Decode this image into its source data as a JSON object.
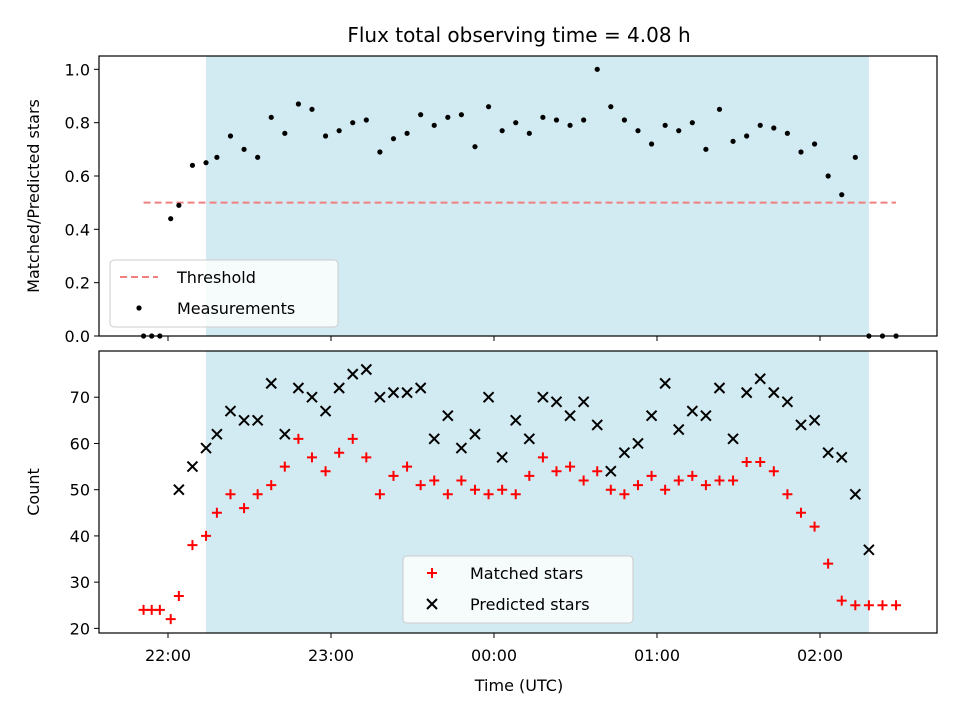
{
  "chart_data": {
    "title": "Flux total observing time = 4.08 h",
    "xlabel": "Time (UTC)",
    "x_ticks": [
      "22:00",
      "23:00",
      "00:00",
      "01:00",
      "02:00"
    ],
    "observing_window": {
      "start": "22:14",
      "end": "02:18",
      "color": "#add8e6"
    },
    "panels": [
      {
        "type": "scatter",
        "ylabel": "Matched/Predicted stars",
        "ylim": [
          0,
          1.05
        ],
        "yticks": [
          "0.0",
          "0.2",
          "0.4",
          "0.6",
          "0.8",
          "1.0"
        ],
        "threshold": {
          "name": "Threshold",
          "value": 0.5,
          "x_range": [
            "21:51",
            "02:28"
          ],
          "color": "#f08080"
        },
        "series": [
          {
            "name": "Measurements",
            "color": "#000000",
            "x": [
              "21:51",
              "21:54",
              "21:57",
              "22:01",
              "22:04",
              "22:09",
              "22:14",
              "22:18",
              "22:23",
              "22:28",
              "22:33",
              "22:38",
              "22:43",
              "22:48",
              "22:53",
              "22:58",
              "23:03",
              "23:08",
              "23:13",
              "23:18",
              "23:23",
              "23:28",
              "23:33",
              "23:38",
              "23:43",
              "23:48",
              "23:53",
              "23:58",
              "00:03",
              "00:08",
              "00:13",
              "00:18",
              "00:23",
              "00:28",
              "00:33",
              "00:38",
              "00:43",
              "00:48",
              "00:53",
              "00:58",
              "01:03",
              "01:08",
              "01:13",
              "01:18",
              "01:23",
              "01:28",
              "01:33",
              "01:38",
              "01:43",
              "01:48",
              "01:53",
              "01:58",
              "02:03",
              "02:08",
              "02:13",
              "02:18",
              "02:23",
              "02:28"
            ],
            "y": [
              0.0,
              0.0,
              0.0,
              0.44,
              0.49,
              0.64,
              0.65,
              0.67,
              0.75,
              0.7,
              0.67,
              0.82,
              0.76,
              0.87,
              0.85,
              0.75,
              0.77,
              0.8,
              0.81,
              0.69,
              0.74,
              0.76,
              0.83,
              0.79,
              0.82,
              0.83,
              0.71,
              0.86,
              0.77,
              0.8,
              0.76,
              0.82,
              0.81,
              0.79,
              0.81,
              1.0,
              0.86,
              0.81,
              0.77,
              0.72,
              0.79,
              0.77,
              0.8,
              0.7,
              0.85,
              0.73,
              0.75,
              0.79,
              0.78,
              0.76,
              0.69,
              0.72,
              0.6,
              0.53,
              0.67,
              0.0,
              0.0,
              0.0
            ]
          }
        ],
        "legend": {
          "location": "lower-left",
          "entries": [
            "Threshold",
            "Measurements"
          ]
        }
      },
      {
        "type": "scatter",
        "ylabel": "Count",
        "ylim": [
          19,
          80
        ],
        "yticks": [
          "20",
          "30",
          "40",
          "50",
          "60",
          "70"
        ],
        "series": [
          {
            "name": "Matched stars",
            "marker": "+",
            "color": "#ff0000",
            "x": [
              "21:51",
              "21:54",
              "21:57",
              "22:01",
              "22:04",
              "22:09",
              "22:14",
              "22:18",
              "22:23",
              "22:28",
              "22:33",
              "22:38",
              "22:43",
              "22:48",
              "22:53",
              "22:58",
              "23:03",
              "23:08",
              "23:13",
              "23:18",
              "23:23",
              "23:28",
              "23:33",
              "23:38",
              "23:43",
              "23:48",
              "23:53",
              "23:58",
              "00:03",
              "00:08",
              "00:13",
              "00:18",
              "00:23",
              "00:28",
              "00:33",
              "00:38",
              "00:43",
              "00:48",
              "00:53",
              "00:58",
              "01:03",
              "01:08",
              "01:13",
              "01:18",
              "01:23",
              "01:28",
              "01:33",
              "01:38",
              "01:43",
              "01:48",
              "01:53",
              "01:58",
              "02:03",
              "02:08",
              "02:13",
              "02:18",
              "02:23",
              "02:28"
            ],
            "y": [
              24,
              24,
              24,
              22,
              27,
              38,
              40,
              45,
              49,
              46,
              49,
              51,
              55,
              61,
              57,
              54,
              58,
              61,
              57,
              49,
              53,
              55,
              51,
              52,
              49,
              52,
              50,
              49,
              50,
              49,
              53,
              57,
              54,
              55,
              52,
              54,
              50,
              49,
              51,
              53,
              50,
              52,
              53,
              51,
              52,
              52,
              56,
              56,
              54,
              49,
              45,
              42,
              34,
              26,
              25,
              25,
              25,
              25
            ]
          },
          {
            "name": "Predicted stars",
            "marker": "x",
            "color": "#000000",
            "x": [
              "22:04",
              "22:09",
              "22:14",
              "22:18",
              "22:23",
              "22:28",
              "22:33",
              "22:38",
              "22:43",
              "22:48",
              "22:53",
              "22:58",
              "23:03",
              "23:08",
              "23:13",
              "23:18",
              "23:23",
              "23:28",
              "23:33",
              "23:38",
              "23:43",
              "23:48",
              "23:53",
              "23:58",
              "00:03",
              "00:08",
              "00:13",
              "00:18",
              "00:23",
              "00:28",
              "00:33",
              "00:38",
              "00:43",
              "00:48",
              "00:53",
              "00:58",
              "01:03",
              "01:08",
              "01:13",
              "01:18",
              "01:23",
              "01:28",
              "01:33",
              "01:38",
              "01:43",
              "01:48",
              "01:53",
              "01:58",
              "02:03",
              "02:08",
              "02:13",
              "02:18"
            ],
            "y": [
              50,
              55,
              59,
              62,
              67,
              65,
              65,
              73,
              62,
              72,
              70,
              67,
              72,
              75,
              76,
              70,
              71,
              71,
              72,
              61,
              66,
              59,
              62,
              70,
              57,
              65,
              61,
              70,
              69,
              66,
              69,
              64,
              54,
              58,
              60,
              66,
              73,
              63,
              67,
              66,
              72,
              61,
              71,
              74,
              71,
              69,
              64,
              65,
              58,
              57,
              49,
              37
            ]
          }
        ],
        "legend": {
          "location": "lower-center",
          "entries": [
            "Matched stars",
            "Predicted stars"
          ]
        }
      }
    ]
  }
}
